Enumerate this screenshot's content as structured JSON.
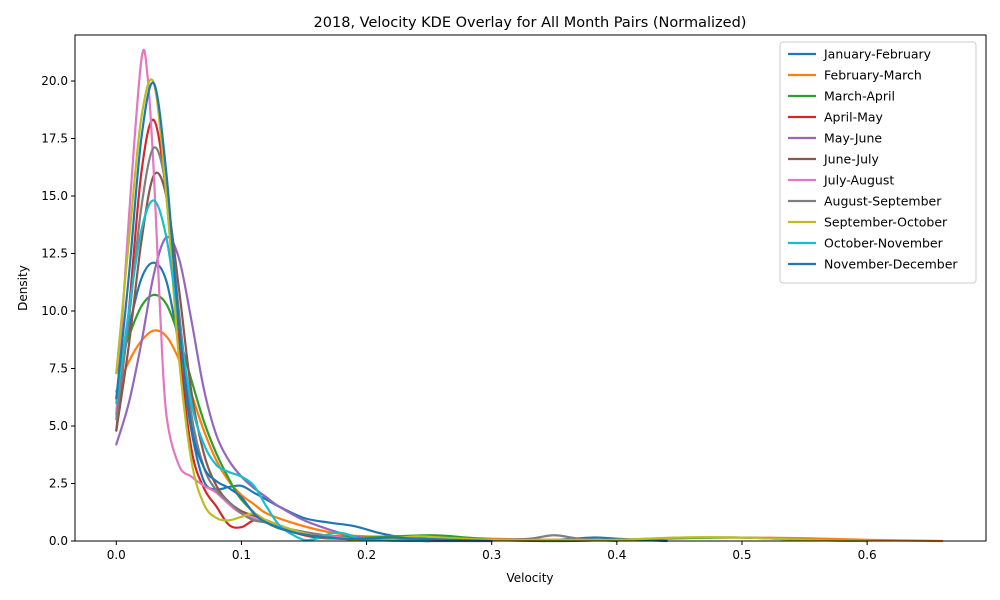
{
  "chart_data": {
    "type": "line",
    "title": "2018, Velocity KDE Overlay for All Month Pairs (Normalized)",
    "xlabel": "Velocity",
    "ylabel": "Density",
    "xlim": [
      -0.033,
      0.695
    ],
    "ylim": [
      0,
      22
    ],
    "xticks": [
      0.0,
      0.1,
      0.2,
      0.3,
      0.4,
      0.5,
      0.6
    ],
    "xtick_labels": [
      "0.0",
      "0.1",
      "0.2",
      "0.3",
      "0.4",
      "0.5",
      "0.6"
    ],
    "yticks": [
      0.0,
      2.5,
      5.0,
      7.5,
      10.0,
      12.5,
      15.0,
      17.5,
      20.0
    ],
    "ytick_labels": [
      "0.0",
      "2.5",
      "5.0",
      "7.5",
      "10.0",
      "12.5",
      "15.0",
      "17.5",
      "20.0"
    ],
    "grid": false,
    "legend_position": "top-right",
    "series": [
      {
        "name": "January-February",
        "color": "#1f77b4",
        "points": [
          [
            0.0,
            6.2
          ],
          [
            0.01,
            9.2
          ],
          [
            0.02,
            11.4
          ],
          [
            0.03,
            12.1
          ],
          [
            0.04,
            11.3
          ],
          [
            0.05,
            8.5
          ],
          [
            0.06,
            4.8
          ],
          [
            0.07,
            2.6
          ],
          [
            0.08,
            2.25
          ],
          [
            0.09,
            2.35
          ],
          [
            0.1,
            2.4
          ],
          [
            0.11,
            2.1
          ],
          [
            0.12,
            1.8
          ],
          [
            0.13,
            1.5
          ],
          [
            0.15,
            1.0
          ],
          [
            0.17,
            0.8
          ],
          [
            0.19,
            0.65
          ],
          [
            0.21,
            0.35
          ],
          [
            0.23,
            0.15
          ],
          [
            0.25,
            0.1
          ],
          [
            0.3,
            0.05
          ],
          [
            0.35,
            0.05
          ],
          [
            0.38,
            0.15
          ],
          [
            0.4,
            0.1
          ],
          [
            0.44,
            0.0
          ]
        ]
      },
      {
        "name": "February-March",
        "color": "#ff7f0e",
        "points": [
          [
            0.0,
            6.5
          ],
          [
            0.01,
            7.8
          ],
          [
            0.02,
            8.7
          ],
          [
            0.03,
            9.15
          ],
          [
            0.04,
            8.9
          ],
          [
            0.05,
            7.9
          ],
          [
            0.06,
            6.4
          ],
          [
            0.07,
            4.8
          ],
          [
            0.08,
            3.5
          ],
          [
            0.09,
            2.6
          ],
          [
            0.1,
            2.0
          ],
          [
            0.11,
            1.6
          ],
          [
            0.12,
            1.2
          ],
          [
            0.14,
            0.8
          ],
          [
            0.16,
            0.5
          ],
          [
            0.18,
            0.3
          ],
          [
            0.2,
            0.2
          ],
          [
            0.25,
            0.2
          ],
          [
            0.3,
            0.1
          ],
          [
            0.35,
            0.05
          ],
          [
            0.4,
            0.05
          ],
          [
            0.45,
            0.15
          ],
          [
            0.5,
            0.15
          ],
          [
            0.55,
            0.12
          ],
          [
            0.6,
            0.05
          ],
          [
            0.66,
            0.0
          ]
        ]
      },
      {
        "name": "March-April",
        "color": "#2ca02c",
        "points": [
          [
            0.0,
            7.3
          ],
          [
            0.01,
            8.9
          ],
          [
            0.02,
            10.2
          ],
          [
            0.03,
            10.7
          ],
          [
            0.04,
            10.3
          ],
          [
            0.05,
            8.9
          ],
          [
            0.06,
            7.0
          ],
          [
            0.07,
            5.2
          ],
          [
            0.08,
            3.8
          ],
          [
            0.09,
            2.7
          ],
          [
            0.1,
            1.8
          ],
          [
            0.12,
            0.8
          ],
          [
            0.14,
            0.4
          ],
          [
            0.16,
            0.25
          ],
          [
            0.18,
            0.2
          ],
          [
            0.2,
            0.15
          ],
          [
            0.25,
            0.25
          ],
          [
            0.28,
            0.15
          ],
          [
            0.3,
            0.05
          ],
          [
            0.35,
            0.0
          ],
          [
            0.4,
            0.05
          ],
          [
            0.45,
            0.12
          ],
          [
            0.5,
            0.15
          ],
          [
            0.55,
            0.05
          ],
          [
            0.6,
            0.0
          ]
        ]
      },
      {
        "name": "April-May",
        "color": "#d62728",
        "points": [
          [
            0.0,
            4.8
          ],
          [
            0.01,
            10.0
          ],
          [
            0.02,
            16.0
          ],
          [
            0.03,
            18.3
          ],
          [
            0.04,
            15.0
          ],
          [
            0.05,
            8.5
          ],
          [
            0.06,
            4.0
          ],
          [
            0.07,
            2.3
          ],
          [
            0.08,
            1.5
          ],
          [
            0.09,
            0.7
          ],
          [
            0.1,
            0.6
          ],
          [
            0.11,
            0.9
          ],
          [
            0.12,
            0.8
          ],
          [
            0.14,
            0.4
          ],
          [
            0.16,
            0.15
          ],
          [
            0.18,
            0.1
          ],
          [
            0.2,
            0.05
          ],
          [
            0.25,
            0.0
          ]
        ]
      },
      {
        "name": "May-June",
        "color": "#9467bd",
        "points": [
          [
            0.0,
            4.2
          ],
          [
            0.01,
            6.0
          ],
          [
            0.02,
            8.6
          ],
          [
            0.03,
            11.6
          ],
          [
            0.04,
            13.2
          ],
          [
            0.05,
            12.3
          ],
          [
            0.06,
            9.6
          ],
          [
            0.07,
            6.6
          ],
          [
            0.08,
            4.6
          ],
          [
            0.09,
            3.5
          ],
          [
            0.1,
            2.8
          ],
          [
            0.11,
            2.3
          ],
          [
            0.12,
            1.9
          ],
          [
            0.13,
            1.5
          ],
          [
            0.15,
            0.9
          ],
          [
            0.17,
            0.5
          ],
          [
            0.19,
            0.2
          ],
          [
            0.21,
            0.05
          ],
          [
            0.25,
            0.0
          ],
          [
            0.3,
            0.0
          ]
        ]
      },
      {
        "name": "June-July",
        "color": "#8c564b",
        "points": [
          [
            0.0,
            4.8
          ],
          [
            0.01,
            8.5
          ],
          [
            0.02,
            13.0
          ],
          [
            0.03,
            15.9
          ],
          [
            0.04,
            15.0
          ],
          [
            0.05,
            11.0
          ],
          [
            0.06,
            6.5
          ],
          [
            0.07,
            3.8
          ],
          [
            0.08,
            2.4
          ],
          [
            0.09,
            1.7
          ],
          [
            0.1,
            1.3
          ],
          [
            0.11,
            1.1
          ],
          [
            0.12,
            0.9
          ],
          [
            0.14,
            0.5
          ],
          [
            0.16,
            0.3
          ],
          [
            0.18,
            0.15
          ],
          [
            0.2,
            0.05
          ],
          [
            0.25,
            0.0
          ]
        ]
      },
      {
        "name": "July-August",
        "color": "#e377c2",
        "points": [
          [
            0.0,
            5.5
          ],
          [
            0.01,
            14.0
          ],
          [
            0.02,
            20.9
          ],
          [
            0.025,
            20.2
          ],
          [
            0.03,
            16.0
          ],
          [
            0.035,
            10.0
          ],
          [
            0.04,
            5.5
          ],
          [
            0.05,
            3.3
          ],
          [
            0.06,
            2.8
          ],
          [
            0.07,
            2.4
          ],
          [
            0.08,
            2.1
          ],
          [
            0.09,
            1.6
          ],
          [
            0.1,
            1.2
          ],
          [
            0.12,
            0.8
          ],
          [
            0.14,
            0.5
          ],
          [
            0.16,
            0.3
          ],
          [
            0.18,
            0.15
          ],
          [
            0.2,
            0.05
          ],
          [
            0.25,
            0.0
          ]
        ]
      },
      {
        "name": "August-September",
        "color": "#7f7f7f",
        "points": [
          [
            0.0,
            5.3
          ],
          [
            0.01,
            9.6
          ],
          [
            0.02,
            14.5
          ],
          [
            0.03,
            17.1
          ],
          [
            0.04,
            15.3
          ],
          [
            0.05,
            10.0
          ],
          [
            0.06,
            5.5
          ],
          [
            0.07,
            3.2
          ],
          [
            0.08,
            2.2
          ],
          [
            0.09,
            1.7
          ],
          [
            0.1,
            1.2
          ],
          [
            0.11,
            0.9
          ],
          [
            0.12,
            0.8
          ],
          [
            0.14,
            0.5
          ],
          [
            0.16,
            0.3
          ],
          [
            0.18,
            0.1
          ],
          [
            0.2,
            0.05
          ],
          [
            0.25,
            0.05
          ],
          [
            0.3,
            0.05
          ],
          [
            0.33,
            0.1
          ],
          [
            0.35,
            0.25
          ],
          [
            0.37,
            0.1
          ],
          [
            0.4,
            0.0
          ]
        ]
      },
      {
        "name": "September-October",
        "color": "#bcbd22",
        "points": [
          [
            0.0,
            7.3
          ],
          [
            0.01,
            13.0
          ],
          [
            0.02,
            18.4
          ],
          [
            0.03,
            19.9
          ],
          [
            0.04,
            15.0
          ],
          [
            0.05,
            8.0
          ],
          [
            0.06,
            3.5
          ],
          [
            0.07,
            1.6
          ],
          [
            0.08,
            1.0
          ],
          [
            0.09,
            0.9
          ],
          [
            0.1,
            1.05
          ],
          [
            0.11,
            1.2
          ],
          [
            0.12,
            0.9
          ],
          [
            0.14,
            0.5
          ],
          [
            0.16,
            0.2
          ],
          [
            0.18,
            0.1
          ],
          [
            0.2,
            0.05
          ],
          [
            0.22,
            0.1
          ],
          [
            0.24,
            0.2
          ],
          [
            0.26,
            0.15
          ],
          [
            0.3,
            0.05
          ],
          [
            0.35,
            0.05
          ],
          [
            0.4,
            0.05
          ],
          [
            0.45,
            0.15
          ],
          [
            0.5,
            0.15
          ],
          [
            0.55,
            0.05
          ],
          [
            0.6,
            0.0
          ]
        ]
      },
      {
        "name": "October-November",
        "color": "#17becf",
        "points": [
          [
            0.0,
            6.0
          ],
          [
            0.01,
            10.0
          ],
          [
            0.02,
            13.5
          ],
          [
            0.03,
            14.8
          ],
          [
            0.04,
            13.2
          ],
          [
            0.05,
            9.5
          ],
          [
            0.06,
            6.0
          ],
          [
            0.07,
            4.2
          ],
          [
            0.08,
            3.3
          ],
          [
            0.09,
            3.0
          ],
          [
            0.1,
            2.8
          ],
          [
            0.11,
            2.4
          ],
          [
            0.12,
            1.5
          ],
          [
            0.13,
            0.7
          ],
          [
            0.14,
            0.3
          ],
          [
            0.15,
            0.05
          ],
          [
            0.16,
            0.1
          ],
          [
            0.17,
            0.3
          ],
          [
            0.18,
            0.35
          ],
          [
            0.19,
            0.2
          ],
          [
            0.2,
            0.05
          ],
          [
            0.25,
            0.0
          ]
        ]
      },
      {
        "name": "November-December",
        "color": "#1f77b4",
        "points": [
          [
            0.0,
            6.2
          ],
          [
            0.01,
            11.5
          ],
          [
            0.02,
            17.5
          ],
          [
            0.03,
            19.9
          ],
          [
            0.04,
            16.0
          ],
          [
            0.05,
            9.5
          ],
          [
            0.06,
            5.0
          ],
          [
            0.07,
            3.2
          ],
          [
            0.08,
            2.6
          ],
          [
            0.09,
            2.3
          ],
          [
            0.1,
            1.9
          ],
          [
            0.11,
            1.2
          ],
          [
            0.12,
            0.8
          ],
          [
            0.14,
            0.4
          ],
          [
            0.16,
            0.2
          ],
          [
            0.18,
            0.1
          ],
          [
            0.2,
            0.1
          ],
          [
            0.22,
            0.15
          ],
          [
            0.24,
            0.1
          ],
          [
            0.3,
            0.0
          ]
        ]
      }
    ]
  }
}
